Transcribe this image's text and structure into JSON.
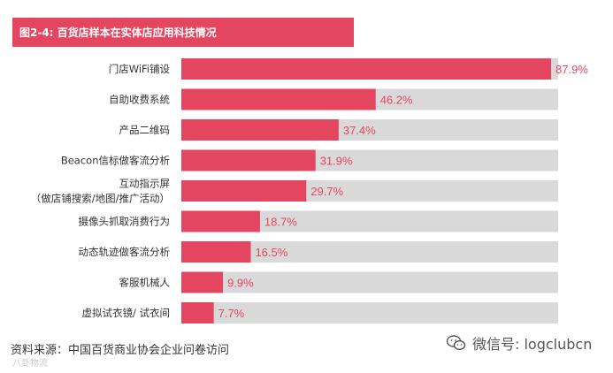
{
  "colors": {
    "accent": "#e5465f",
    "track": "#d9d9d9",
    "value_text": "#e5465f"
  },
  "chart_data": {
    "type": "bar",
    "orientation": "horizontal",
    "title": "图2-4: 百货店样本在实体店应用科技情况",
    "categories": [
      "门店WiFi铺设",
      "自助收费系统",
      "产品二维码",
      "Beacon信标做客流分析",
      "互动指示屏（做店铺搜索/地图/推广活动）",
      "摄像头抓取消费行为",
      "动态轨迹做客流分析",
      "客服机械人",
      "虚拟试衣镜/试衣间"
    ],
    "category_lines": [
      [
        "门店WiFi铺设"
      ],
      [
        "自助收费系统"
      ],
      [
        "产品二维码"
      ],
      [
        "Beacon信标做客流分析"
      ],
      [
        "互动指示屏",
        "（做店铺搜索/地图/推广活动）"
      ],
      [
        "摄像头抓取消费行为"
      ],
      [
        "动态轨迹做客流分析"
      ],
      [
        "客服机械人"
      ],
      [
        "虚拟试衣镜/ 试衣间"
      ]
    ],
    "values": [
      87.9,
      46.2,
      37.4,
      31.9,
      29.7,
      18.7,
      16.5,
      9.9,
      7.7
    ],
    "value_labels": [
      "87.9%",
      "46.2%",
      "37.4%",
      "31.9%",
      "29.7%",
      "18.7%",
      "16.5%",
      "9.9%",
      "7.7%"
    ],
    "xlim": [
      0,
      90
    ],
    "unit": "%",
    "grid": false,
    "legend": "none"
  },
  "footer": {
    "source": "资料来源：中国百货商业协会企业问卷访问",
    "wechat_label": "微信号: logclubcn",
    "watermark": "八卦物流"
  },
  "icons": {
    "wechat": "wechat-icon"
  }
}
